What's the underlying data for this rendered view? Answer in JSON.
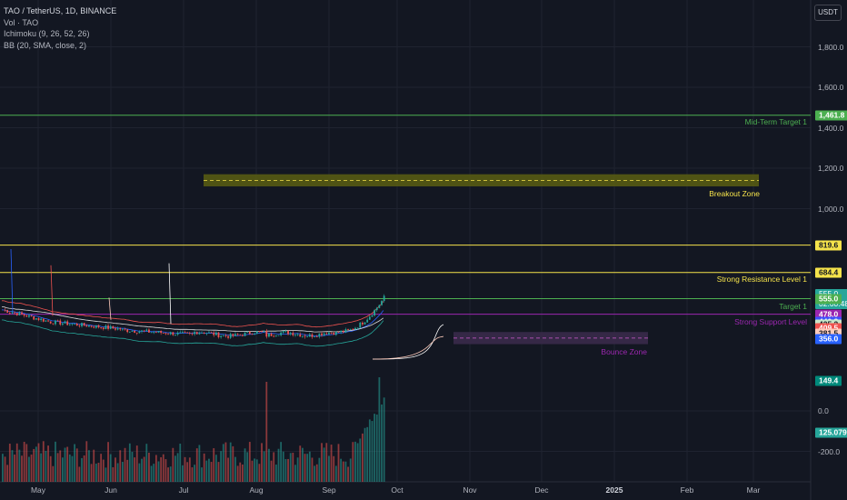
{
  "legend": {
    "symbol": "TAO / TetherUS, 1D, BINANCE",
    "volume": "Vol · TAO",
    "ichimoku": "Ichimoku (9, 26, 52, 26)",
    "bb": "BB (20, SMA, close, 2)"
  },
  "currency": "USDT",
  "colors": {
    "background": "#131722",
    "up": "#26a69a",
    "down": "#ef5350",
    "resistance": "#f5e34b",
    "target": "#4caf50",
    "support": "#9c27b0",
    "breakout_zone": "#5b5e12",
    "bounce_zone": "#3a2a4a"
  },
  "chart_data": {
    "type": "candlestick",
    "x_labels": [
      "May",
      "Jun",
      "Jul",
      "Aug",
      "Sep",
      "Oct",
      "Nov",
      "Dec",
      "2025",
      "Feb",
      "Mar"
    ],
    "y_ticks": [
      "1,800.0",
      "1,600.0",
      "1,400.0",
      "1,200.0",
      "1,000.0",
      "0.0",
      "-200.0"
    ],
    "price_levels": [
      {
        "label": "Mid-Term Target 1",
        "value": 1461.8,
        "color": "#4caf50"
      },
      {
        "label": "Strong Resistance Level 1",
        "value": 684.4,
        "color": "#f5e34b"
      },
      {
        "label": "Target 1",
        "value": 555.0,
        "color": "#4caf50"
      },
      {
        "label": "Strong Support Level",
        "value": 478.0,
        "color": "#9c27b0"
      }
    ],
    "zones": [
      {
        "label": "Breakout Zone",
        "from": 1110,
        "to": 1170,
        "mid": 1140
      },
      {
        "label": "Bounce Zone",
        "from": 330,
        "to": 390,
        "mid": 360
      }
    ],
    "price_badges": [
      {
        "value": "819.6",
        "bg": "#f5e34b",
        "fg": "#131722"
      },
      {
        "value": "684.4",
        "bg": "#f5e34b",
        "fg": "#131722"
      },
      {
        "value": "562.6",
        "bg": "#ef5350",
        "fg": "#ffffff"
      },
      {
        "value": "555.0",
        "sub": "02:00:48",
        "bg": "#26a69a",
        "fg": "#ffffff"
      },
      {
        "value": "555.0",
        "bg": "#4caf50",
        "fg": "#ffffff"
      },
      {
        "value": "478.0",
        "bg": "#9c27b0",
        "fg": "#ffffff"
      },
      {
        "value": "440.8",
        "bg": "#3f51ff",
        "fg": "#ffffff"
      },
      {
        "value": "425.2",
        "bg": "#c8e6c9",
        "fg": "#131722"
      },
      {
        "value": "409.5",
        "bg": "#ef5350",
        "fg": "#ffffff"
      },
      {
        "value": "381.5",
        "bg": "#ffccbc",
        "fg": "#131722"
      },
      {
        "value": "356.0",
        "bg": "#2962ff",
        "fg": "#ffffff"
      },
      {
        "value": "149.4",
        "bg": "#00897b",
        "fg": "#ffffff"
      },
      {
        "value": "125.079 K",
        "bg": "#26a69a",
        "fg": "#ffffff"
      }
    ]
  }
}
